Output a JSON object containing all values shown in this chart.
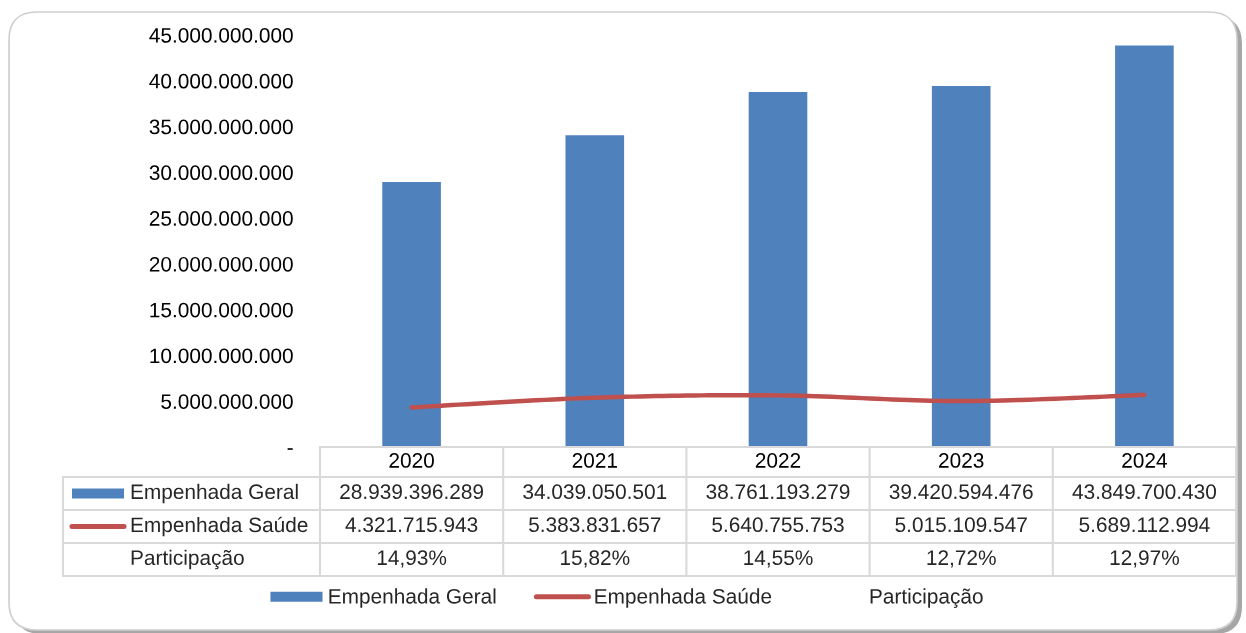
{
  "chart_data": {
    "type": "bar",
    "categories": [
      "2020",
      "2021",
      "2022",
      "2023",
      "2024"
    ],
    "series": [
      {
        "name": "Empenhada Geral",
        "color": "#4f81bd",
        "values": [
          28939396289,
          34039050501,
          38761193279,
          39420594476,
          43849700430
        ],
        "value_labels": [
          "28.939.396.289",
          "34.039.050.501",
          "38.761.193.279",
          "39.420.594.476",
          "43.849.700.430"
        ]
      },
      {
        "name": "Empenhada Saúde",
        "type": "line",
        "color": "#c0504d",
        "values": [
          4321715943,
          5383831657,
          5640755753,
          5015109547,
          5689112994
        ],
        "value_labels": [
          "4.321.715.943",
          "5.383.831.657",
          "5.640.755.753",
          "5.015.109.547",
          "5.689.112.994"
        ]
      },
      {
        "name": "Participação",
        "type": "line",
        "values": [
          null,
          null,
          null,
          null,
          null
        ],
        "value_labels": [
          "14,93%",
          "15,82%",
          "14,55%",
          "12,72%",
          "12,97%"
        ]
      }
    ],
    "ylim": [
      0,
      45000000000
    ],
    "yticks": [
      {
        "value": 0,
        "label": "-"
      },
      {
        "value": 5000000000,
        "label": "5.000.000.000"
      },
      {
        "value": 10000000000,
        "label": "10.000.000.000"
      },
      {
        "value": 15000000000,
        "label": "15.000.000.000"
      },
      {
        "value": 20000000000,
        "label": "20.000.000.000"
      },
      {
        "value": 25000000000,
        "label": "25.000.000.000"
      },
      {
        "value": 30000000000,
        "label": "30.000.000.000"
      },
      {
        "value": 35000000000,
        "label": "35.000.000.000"
      },
      {
        "value": 40000000000,
        "label": "40.000.000.000"
      },
      {
        "value": 45000000000,
        "label": "45.000.000.000"
      }
    ],
    "legend": "bottom"
  }
}
